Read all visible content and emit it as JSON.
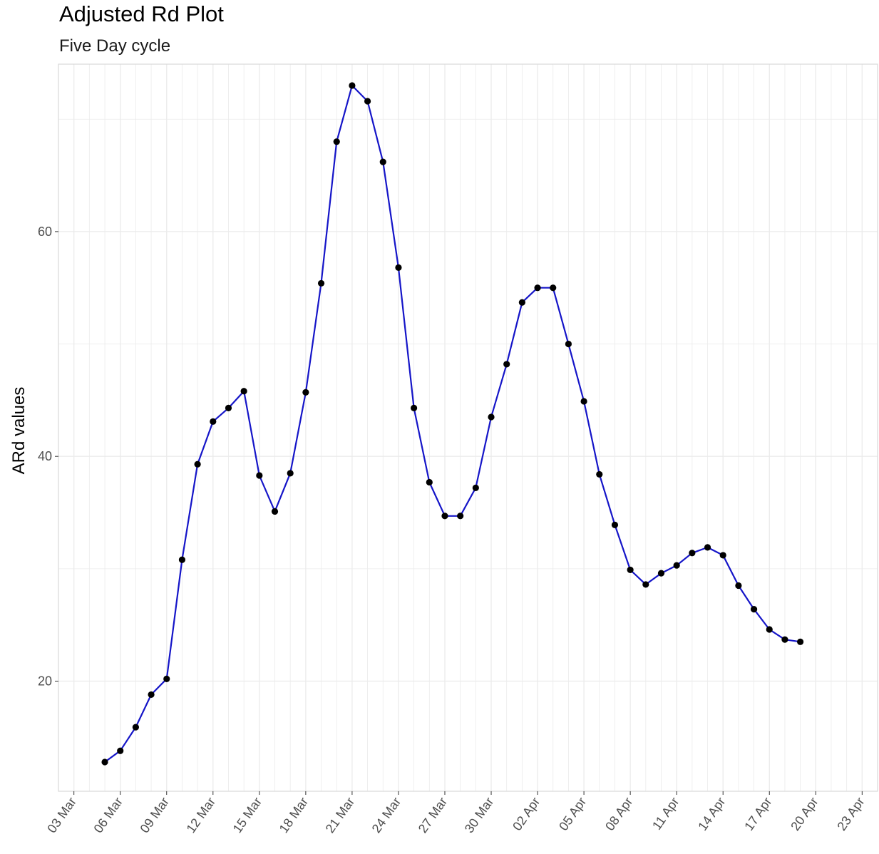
{
  "chart_data": {
    "type": "line",
    "title": "Adjusted Rd Plot",
    "subtitle": "Five Day cycle",
    "xlabel": "",
    "ylabel": "ARd values",
    "x_axis": {
      "type": "date",
      "range": [
        "2020-03-02",
        "2020-04-24"
      ],
      "ticks": [
        "2020-03-03",
        "2020-03-06",
        "2020-03-09",
        "2020-03-12",
        "2020-03-15",
        "2020-03-18",
        "2020-03-21",
        "2020-03-24",
        "2020-03-27",
        "2020-03-30",
        "2020-04-02",
        "2020-04-05",
        "2020-04-08",
        "2020-04-11",
        "2020-04-14",
        "2020-04-17",
        "2020-04-20",
        "2020-04-23"
      ],
      "tick_labels": [
        "03 Mar",
        "06 Mar",
        "09 Mar",
        "12 Mar",
        "15 Mar",
        "18 Mar",
        "21 Mar",
        "24 Mar",
        "27 Mar",
        "30 Mar",
        "02 Apr",
        "05 Apr",
        "08 Apr",
        "11 Apr",
        "14 Apr",
        "17 Apr",
        "20 Apr",
        "23 Apr"
      ]
    },
    "y_axis": {
      "range": [
        10.2,
        74.9
      ],
      "ticks": [
        20,
        40,
        60
      ],
      "tick_labels": [
        "20",
        "40",
        "60"
      ]
    },
    "grid": true,
    "legend": "none",
    "colors": {
      "line": "#1515c8",
      "point": "#000000",
      "grid": "#ebebeb",
      "panel_border": "#d9d9d9"
    },
    "series": [
      {
        "x": [
          "2020-03-05",
          "2020-03-06",
          "2020-03-07",
          "2020-03-08",
          "2020-03-09",
          "2020-03-10",
          "2020-03-11",
          "2020-03-12",
          "2020-03-13",
          "2020-03-14",
          "2020-03-15",
          "2020-03-16",
          "2020-03-17",
          "2020-03-18",
          "2020-03-19",
          "2020-03-20",
          "2020-03-21",
          "2020-03-22",
          "2020-03-23",
          "2020-03-24",
          "2020-03-25",
          "2020-03-26",
          "2020-03-27",
          "2020-03-28",
          "2020-03-29",
          "2020-03-30",
          "2020-03-31",
          "2020-04-01",
          "2020-04-02",
          "2020-04-03",
          "2020-04-04",
          "2020-04-05",
          "2020-04-06",
          "2020-04-07",
          "2020-04-08",
          "2020-04-09",
          "2020-04-10",
          "2020-04-11",
          "2020-04-12",
          "2020-04-13",
          "2020-04-14",
          "2020-04-15",
          "2020-04-16",
          "2020-04-17",
          "2020-04-18",
          "2020-04-19"
        ],
        "y": [
          12.8,
          13.8,
          15.9,
          18.8,
          20.2,
          30.8,
          39.3,
          43.1,
          44.3,
          45.8,
          38.3,
          35.1,
          38.5,
          45.7,
          55.4,
          68.0,
          73.0,
          71.6,
          66.2,
          56.8,
          44.3,
          37.7,
          34.7,
          34.7,
          37.2,
          43.5,
          48.2,
          53.7,
          55.0,
          55.0,
          50.0,
          44.9,
          38.4,
          33.9,
          29.9,
          28.6,
          29.6,
          30.3,
          31.4,
          31.9,
          31.2,
          28.5,
          26.4,
          24.6,
          23.7,
          23.5
        ]
      }
    ]
  }
}
